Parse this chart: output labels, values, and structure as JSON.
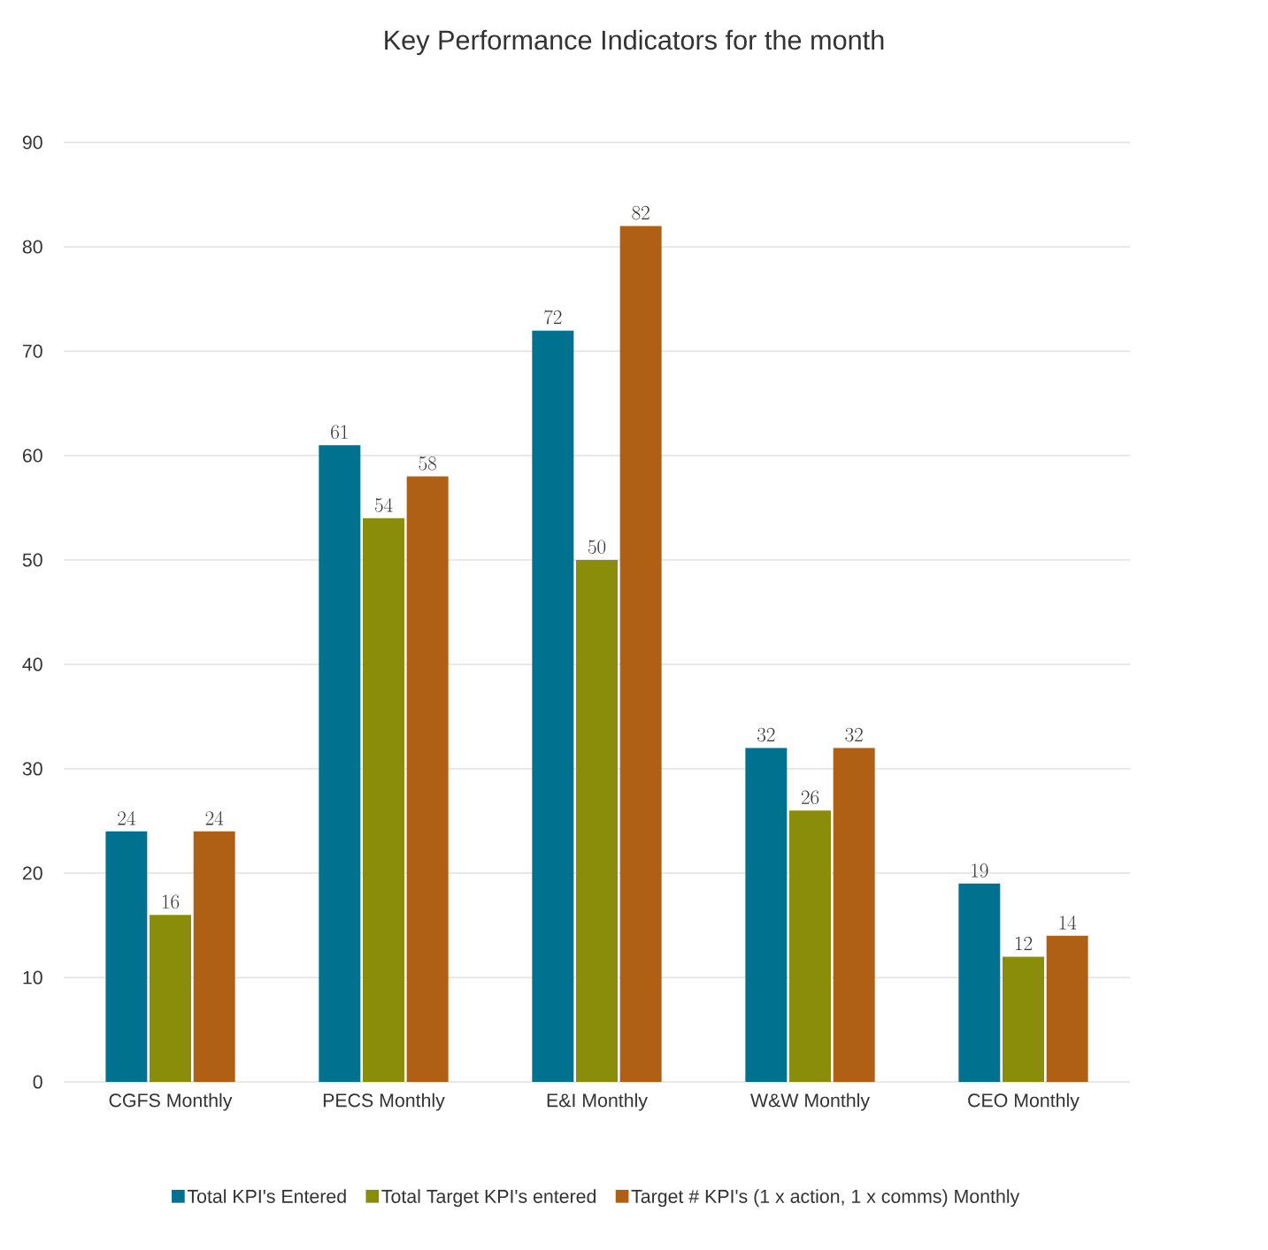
{
  "chart_data": {
    "type": "bar",
    "title": "Key Performance Indicators for the month",
    "categories": [
      "CGFS Monthly",
      "PECS Monthly",
      "E&I Monthly",
      "W&W Monthly",
      "CEO Monthly"
    ],
    "series": [
      {
        "name": "Total KPI's Entered",
        "color": "#00718f",
        "values": [
          24,
          61,
          72,
          32,
          19
        ]
      },
      {
        "name": "Total Target KPI's entered",
        "color": "#8a8d0a",
        "values": [
          16,
          54,
          50,
          26,
          12
        ]
      },
      {
        "name": "Target # KPI's (1 x action, 1 x comms) Monthly",
        "color": "#b06014",
        "values": [
          24,
          58,
          82,
          32,
          14
        ]
      }
    ],
    "ylim": [
      0,
      90
    ],
    "yticks": [
      0,
      10,
      20,
      30,
      40,
      50,
      60,
      70,
      80,
      90
    ],
    "grid": "y",
    "legend": "bottom",
    "data_labels": true
  }
}
